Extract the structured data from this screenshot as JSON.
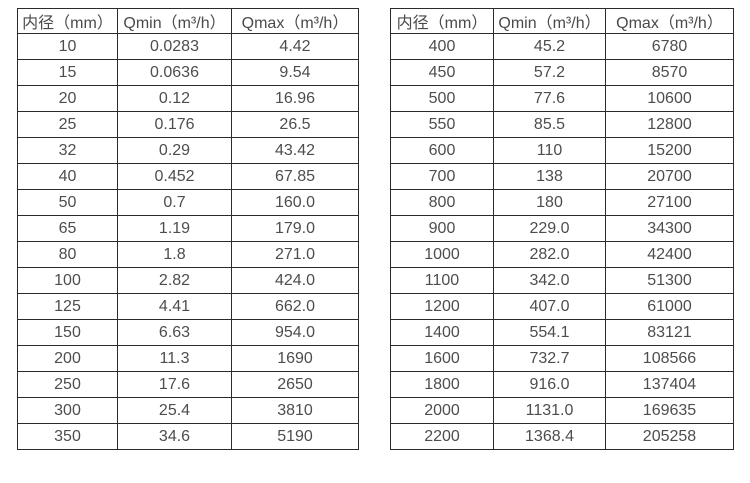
{
  "page": {
    "background_color": "#ffffff",
    "text_color": "#4d4d4d",
    "border_color": "#2b2b2b"
  },
  "tables": [
    {
      "name": "flow-spec-table-small-diameters",
      "headers": [
        "内径（mm）",
        "Qmin（m³/h）",
        "Qmax（m³/h）"
      ],
      "rows": [
        [
          "10",
          "0.0283",
          "4.42"
        ],
        [
          "15",
          "0.0636",
          "9.54"
        ],
        [
          "20",
          "0.12",
          "16.96"
        ],
        [
          "25",
          "0.176",
          "26.5"
        ],
        [
          "32",
          "0.29",
          "43.42"
        ],
        [
          "40",
          "0.452",
          "67.85"
        ],
        [
          "50",
          "0.7",
          "160.0"
        ],
        [
          "65",
          "1.19",
          "179.0"
        ],
        [
          "80",
          "1.8",
          "271.0"
        ],
        [
          "100",
          "2.82",
          "424.0"
        ],
        [
          "125",
          "4.41",
          "662.0"
        ],
        [
          "150",
          "6.63",
          "954.0"
        ],
        [
          "200",
          "11.3",
          "1690"
        ],
        [
          "250",
          "17.6",
          "2650"
        ],
        [
          "300",
          "25.4",
          "3810"
        ],
        [
          "350",
          "34.6",
          "5190"
        ]
      ]
    },
    {
      "name": "flow-spec-table-large-diameters",
      "headers": [
        "内径（mm）",
        "Qmin（m³/h）",
        "Qmax（m³/h）"
      ],
      "rows": [
        [
          "400",
          "45.2",
          "6780"
        ],
        [
          "450",
          "57.2",
          "8570"
        ],
        [
          "500",
          "77.6",
          "10600"
        ],
        [
          "550",
          "85.5",
          "12800"
        ],
        [
          "600",
          "110",
          "15200"
        ],
        [
          "700",
          "138",
          "20700"
        ],
        [
          "800",
          "180",
          "27100"
        ],
        [
          "900",
          "229.0",
          "34300"
        ],
        [
          "1000",
          "282.0",
          "42400"
        ],
        [
          "1100",
          "342.0",
          "51300"
        ],
        [
          "1200",
          "407.0",
          "61000"
        ],
        [
          "1400",
          "554.1",
          "83121"
        ],
        [
          "1600",
          "732.7",
          "108566"
        ],
        [
          "1800",
          "916.0",
          "137404"
        ],
        [
          "2000",
          "1131.0",
          "169635"
        ],
        [
          "2200",
          "1368.4",
          "205258"
        ]
      ]
    }
  ]
}
